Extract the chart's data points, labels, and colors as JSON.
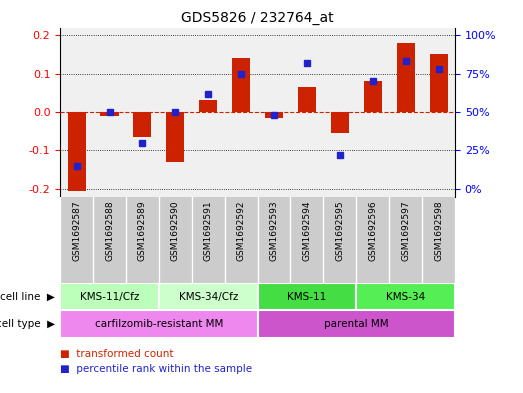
{
  "title": "GDS5826 / 232764_at",
  "samples": [
    "GSM1692587",
    "GSM1692588",
    "GSM1692589",
    "GSM1692590",
    "GSM1692591",
    "GSM1692592",
    "GSM1692593",
    "GSM1692594",
    "GSM1692595",
    "GSM1692596",
    "GSM1692597",
    "GSM1692598"
  ],
  "transformed_count": [
    -0.205,
    -0.01,
    -0.065,
    -0.13,
    0.03,
    0.14,
    -0.015,
    0.065,
    -0.055,
    0.08,
    0.18,
    0.15
  ],
  "percentile_rank": [
    15,
    50,
    30,
    50,
    62,
    75,
    48,
    82,
    22,
    70,
    83,
    78
  ],
  "cell_lines": [
    {
      "label": "KMS-11/Cfz",
      "start": 0,
      "end": 3,
      "color": "#bbffbb"
    },
    {
      "label": "KMS-34/Cfz",
      "start": 3,
      "end": 6,
      "color": "#ccffcc"
    },
    {
      "label": "KMS-11",
      "start": 6,
      "end": 9,
      "color": "#44dd44"
    },
    {
      "label": "KMS-34",
      "start": 9,
      "end": 12,
      "color": "#55ee55"
    }
  ],
  "cell_types": [
    {
      "label": "carfilzomib-resistant MM",
      "start": 0,
      "end": 6,
      "color": "#ee88ee"
    },
    {
      "label": "parental MM",
      "start": 6,
      "end": 12,
      "color": "#cc55cc"
    }
  ],
  "ylim": [
    -0.22,
    0.22
  ],
  "yticks": [
    -0.2,
    -0.1,
    0.0,
    0.1,
    0.2
  ],
  "bar_color": "#cc2200",
  "dot_color": "#2222cc",
  "zero_line_color": "#cc2200",
  "plot_bg": "#f0f0f0"
}
